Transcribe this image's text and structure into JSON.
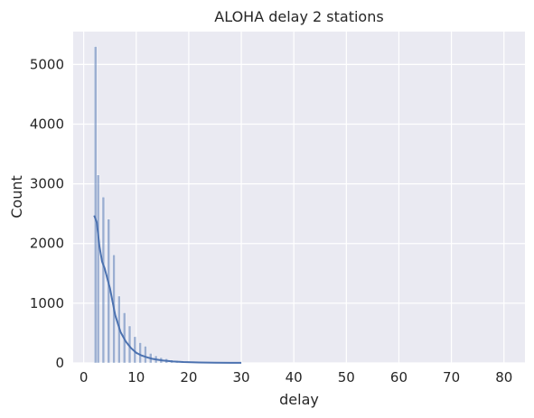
{
  "chart_data": {
    "type": "bar",
    "title": "ALOHA delay 2 stations",
    "xlabel": "delay",
    "ylabel": "Count",
    "xlim": [
      -2.0,
      84.0
    ],
    "ylim": [
      0,
      5550
    ],
    "xticks": [
      0,
      10,
      20,
      30,
      40,
      50,
      60,
      70,
      80
    ],
    "yticks": [
      0,
      1000,
      2000,
      3000,
      4000,
      5000
    ],
    "grid": true,
    "bin_width": 0.5,
    "histogram": {
      "bin_left": [
        2.0,
        2.5,
        3.0,
        3.5,
        4.0,
        4.5,
        5.0,
        5.5,
        6.0,
        6.5,
        7.0,
        7.5,
        8.0,
        8.5,
        9.0,
        9.5,
        10.0,
        10.5,
        11.0,
        11.5,
        12.0,
        12.5,
        13.0,
        13.5,
        14.0,
        14.5,
        15.0,
        15.5,
        16.0,
        16.5,
        17.0,
        17.5,
        18.0,
        18.5,
        19.0,
        19.5,
        20.0,
        21.0,
        22.0,
        23.0,
        24.0,
        25.0
      ],
      "counts": [
        5300,
        3150,
        0,
        2780,
        0,
        2410,
        0,
        1810,
        0,
        1120,
        0,
        840,
        0,
        620,
        0,
        440,
        0,
        340,
        0,
        280,
        0,
        160,
        0,
        120,
        0,
        90,
        0,
        70,
        0,
        50,
        0,
        40,
        0,
        30,
        0,
        20,
        12,
        8,
        6,
        4,
        3,
        2
      ]
    },
    "kde": {
      "x": [
        2.0,
        2.5,
        3.0,
        3.5,
        4.0,
        5.0,
        6.0,
        7.0,
        8.0,
        9.0,
        10.0,
        11.0,
        12.0,
        13.0,
        14.0,
        15.0,
        17.0,
        19.0,
        22.0,
        25.0,
        28.0,
        30.0
      ],
      "y": [
        2470,
        2350,
        1950,
        1700,
        1580,
        1250,
        800,
        520,
        360,
        250,
        170,
        125,
        95,
        70,
        55,
        42,
        25,
        15,
        8,
        4,
        2,
        1
      ]
    },
    "colors": {
      "background": "#eaeaf2",
      "grid": "#ffffff",
      "bar_fill": "#4c72b0",
      "bar_opacity": "0.5",
      "kde_line": "#4c72b0"
    }
  }
}
